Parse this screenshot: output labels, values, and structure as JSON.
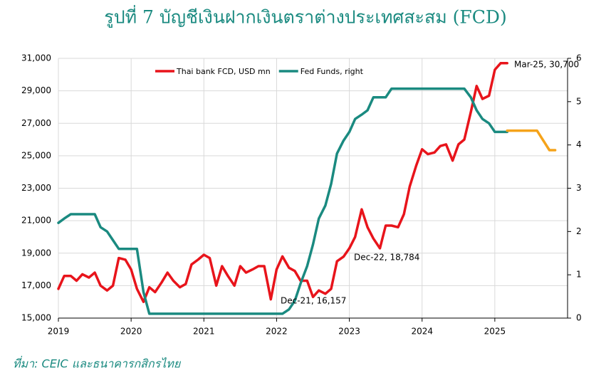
{
  "chart_data": {
    "type": "line",
    "title": "รูปที่ 7 บัญชีเงินฝากเงินตราต่างประเทศสะสม (FCD)",
    "source": "ที่มา: CEIC และธนาคารกสิกรไทย",
    "x": [
      2019.0,
      2019.08,
      2019.17,
      2019.25,
      2019.33,
      2019.42,
      2019.5,
      2019.58,
      2019.67,
      2019.75,
      2019.83,
      2019.92,
      2020.0,
      2020.08,
      2020.17,
      2020.25,
      2020.33,
      2020.42,
      2020.5,
      2020.58,
      2020.67,
      2020.75,
      2020.83,
      2020.92,
      2021.0,
      2021.08,
      2021.17,
      2021.25,
      2021.33,
      2021.42,
      2021.5,
      2021.58,
      2021.67,
      2021.75,
      2021.83,
      2021.92,
      2022.0,
      2022.08,
      2022.17,
      2022.25,
      2022.33,
      2022.42,
      2022.5,
      2022.58,
      2022.67,
      2022.75,
      2022.83,
      2022.92,
      2023.0,
      2023.08,
      2023.17,
      2023.25,
      2023.33,
      2023.42,
      2023.5,
      2023.58,
      2023.67,
      2023.75,
      2023.83,
      2023.92,
      2024.0,
      2024.08,
      2024.17,
      2024.25,
      2024.33,
      2024.42,
      2024.5,
      2024.58,
      2024.67,
      2024.75,
      2024.83,
      2024.92,
      2025.0,
      2025.08,
      2025.17
    ],
    "series": [
      {
        "name": "Thai bank FCD, USD mn",
        "color": "#e8141b",
        "values": [
          16800,
          17600,
          17600,
          17300,
          17700,
          17500,
          17800,
          17000,
          16700,
          17000,
          18700,
          18600,
          18000,
          16800,
          16000,
          16900,
          16600,
          17200,
          17800,
          17300,
          16900,
          17100,
          18300,
          18600,
          18900,
          18700,
          17000,
          18200,
          17600,
          17000,
          18200,
          17800,
          18000,
          18200,
          18200,
          16157,
          18000,
          18800,
          18100,
          17900,
          17300,
          17300,
          16300,
          16700,
          16500,
          16800,
          18500,
          18784,
          19300,
          20000,
          21700,
          20600,
          19900,
          19300,
          20700,
          20700,
          20600,
          21400,
          23100,
          24400,
          25400,
          25100,
          25200,
          25600,
          25700,
          24700,
          25700,
          26000,
          27700,
          29300,
          28500,
          28700,
          30300,
          30700,
          30700
        ]
      },
      {
        "name": "Fed Funds, right",
        "color": "#1a8a80",
        "axis": "y2",
        "values": [
          2.2,
          2.3,
          2.4,
          2.4,
          2.4,
          2.4,
          2.4,
          2.1,
          2.0,
          1.8,
          1.6,
          1.6,
          1.6,
          1.6,
          0.6,
          0.1,
          0.1,
          0.1,
          0.1,
          0.1,
          0.1,
          0.1,
          0.1,
          0.1,
          0.1,
          0.1,
          0.1,
          0.1,
          0.1,
          0.1,
          0.1,
          0.1,
          0.1,
          0.1,
          0.1,
          0.1,
          0.1,
          0.1,
          0.2,
          0.4,
          0.8,
          1.2,
          1.7,
          2.3,
          2.6,
          3.1,
          3.8,
          4.1,
          4.3,
          4.6,
          4.7,
          4.8,
          5.1,
          5.1,
          5.1,
          5.3,
          5.3,
          5.3,
          5.3,
          5.3,
          5.3,
          5.3,
          5.3,
          5.3,
          5.3,
          5.3,
          5.3,
          5.3,
          5.1,
          4.8,
          4.6,
          4.5,
          4.3,
          4.3,
          4.3
        ]
      },
      {
        "color": "#f5a31a",
        "axis": "y2",
        "x": [
          2025.17,
          2025.42,
          2025.58,
          2025.75,
          2025.83
        ],
        "values": [
          4.33,
          4.33,
          4.33,
          3.88,
          3.88
        ]
      }
    ],
    "annotations": [
      "Mar-25,  30,700",
      "Dec-22,  18,784",
      "Dec-21,  16,157"
    ],
    "xlim": [
      2019,
      2026
    ],
    "xticks": [
      2019,
      2020,
      2021,
      2022,
      2023,
      2024,
      2025
    ],
    "ylim": [
      15000,
      31000
    ],
    "yticks": [
      {
        "value": 15000,
        "label": "15,000"
      },
      {
        "value": 17000,
        "label": "17,000"
      },
      {
        "value": 19000,
        "label": "19,000"
      },
      {
        "value": 21000,
        "label": "21,000"
      },
      {
        "value": 23000,
        "label": "23,000"
      },
      {
        "value": 25000,
        "label": "25,000"
      },
      {
        "value": 27000,
        "label": "27,000"
      },
      {
        "value": 29000,
        "label": "29,000"
      },
      {
        "value": 31000,
        "label": "31,000"
      }
    ],
    "y2lim": [
      0,
      6
    ],
    "y2ticks": [
      0,
      1,
      2,
      3,
      4,
      5,
      6
    ],
    "grid": true
  }
}
